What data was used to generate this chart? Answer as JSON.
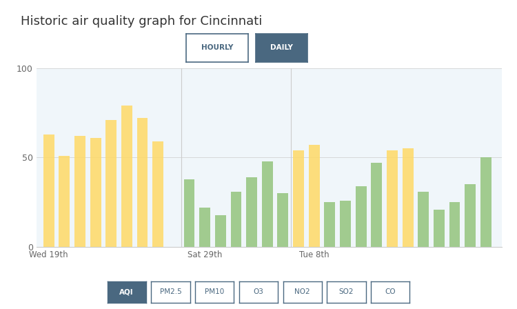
{
  "title": "Historic air quality graph for Cincinnati",
  "chart_bg_color": "#f0f6fa",
  "ylim": [
    0,
    100
  ],
  "yticks": [
    0,
    50,
    100
  ],
  "xtick_labels": [
    "Wed 19th",
    "Sat 29th",
    "Tue 8th"
  ],
  "xtick_positions": [
    0,
    10,
    17
  ],
  "bar_data": [
    {
      "x": 0,
      "height": 63,
      "color": "#ffd966"
    },
    {
      "x": 1,
      "height": 51,
      "color": "#ffd966"
    },
    {
      "x": 2,
      "height": 62,
      "color": "#ffd966"
    },
    {
      "x": 3,
      "height": 61,
      "color": "#ffd966"
    },
    {
      "x": 4,
      "height": 71,
      "color": "#ffd966"
    },
    {
      "x": 5,
      "height": 79,
      "color": "#ffd966"
    },
    {
      "x": 6,
      "height": 72,
      "color": "#ffd966"
    },
    {
      "x": 7,
      "height": 59,
      "color": "#ffd966"
    },
    {
      "x": 9,
      "height": 38,
      "color": "#93c47d"
    },
    {
      "x": 10,
      "height": 22,
      "color": "#93c47d"
    },
    {
      "x": 11,
      "height": 18,
      "color": "#93c47d"
    },
    {
      "x": 12,
      "height": 31,
      "color": "#93c47d"
    },
    {
      "x": 13,
      "height": 39,
      "color": "#93c47d"
    },
    {
      "x": 14,
      "height": 48,
      "color": "#93c47d"
    },
    {
      "x": 15,
      "height": 30,
      "color": "#93c47d"
    },
    {
      "x": 16,
      "height": 54,
      "color": "#ffd966"
    },
    {
      "x": 17,
      "height": 57,
      "color": "#ffd966"
    },
    {
      "x": 18,
      "height": 25,
      "color": "#93c47d"
    },
    {
      "x": 19,
      "height": 26,
      "color": "#93c47d"
    },
    {
      "x": 20,
      "height": 34,
      "color": "#93c47d"
    },
    {
      "x": 21,
      "height": 47,
      "color": "#93c47d"
    },
    {
      "x": 22,
      "height": 54,
      "color": "#ffd966"
    },
    {
      "x": 23,
      "height": 55,
      "color": "#ffd966"
    },
    {
      "x": 24,
      "height": 31,
      "color": "#93c47d"
    },
    {
      "x": 25,
      "height": 21,
      "color": "#93c47d"
    },
    {
      "x": 26,
      "height": 25,
      "color": "#93c47d"
    },
    {
      "x": 27,
      "height": 35,
      "color": "#93c47d"
    },
    {
      "x": 28,
      "height": 50,
      "color": "#93c47d"
    }
  ],
  "button_hourly_text": "HOURLY",
  "button_daily_text": "DAILY",
  "button_active_color": "#4a6880",
  "button_inactive_color": "#ffffff",
  "button_text_active": "#ffffff",
  "button_text_inactive": "#4a6880",
  "bottom_buttons": [
    "AQI",
    "PM2.5",
    "PM10",
    "O3",
    "NO2",
    "SO2",
    "CO"
  ],
  "bottom_active_idx": 0,
  "bar_width": 0.7,
  "separator_lines": [
    8.5,
    15.5
  ],
  "separator_color": "#cccccc"
}
